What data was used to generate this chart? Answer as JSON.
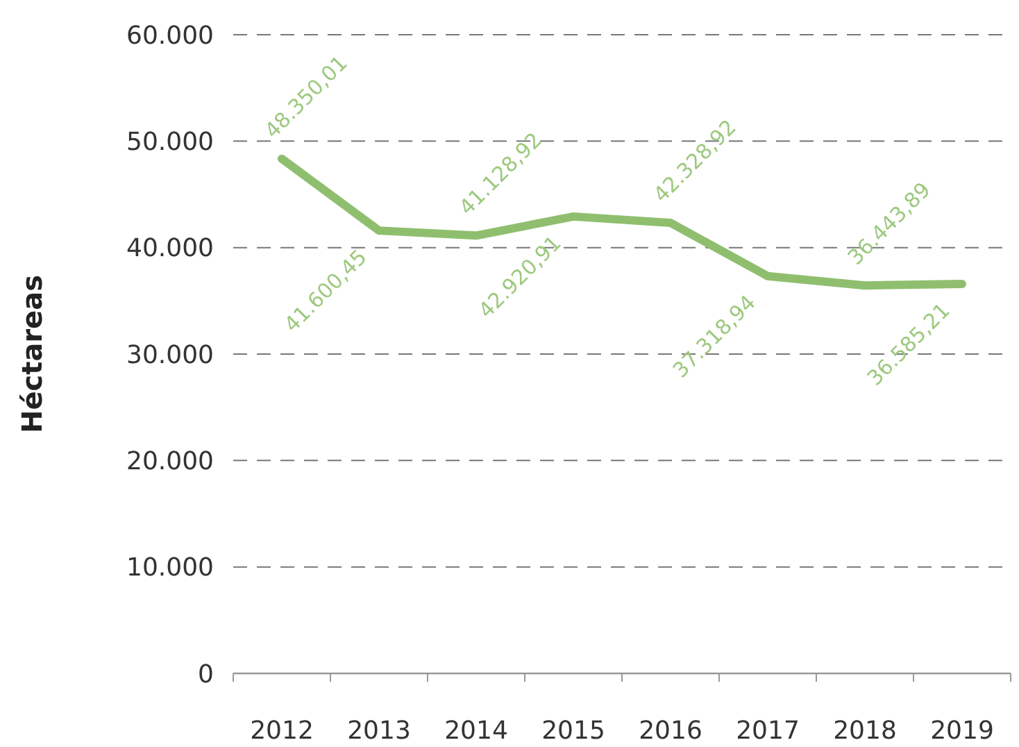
{
  "chart_data": {
    "type": "line",
    "ylabel": "Héctareas",
    "categories": [
      "2012",
      "2013",
      "2014",
      "2015",
      "2016",
      "2017",
      "2018",
      "2019"
    ],
    "series": [
      {
        "color": "#8fbf6e",
        "values": [
          48350.01,
          41600.45,
          41128.92,
          42920.91,
          42328.92,
          37318.94,
          36443.89,
          36585.21
        ],
        "value_labels": [
          "48.350,01",
          "41.600,45",
          "41.128,92",
          "42.920,91",
          "42.328,92",
          "37.318,94",
          "36.443,89",
          "36.585,21"
        ]
      }
    ],
    "ylim": [
      0,
      60000
    ],
    "yticks": [
      0,
      {
        "value": 10000,
        "label": "10.000"
      },
      {
        "value": 20000,
        "label": "20.000"
      },
      {
        "value": 30000,
        "label": "30.000"
      },
      {
        "value": 40000,
        "label": "40.000"
      },
      {
        "value": 50000,
        "label": "50.000"
      },
      {
        "value": 60000,
        "label": "60.000"
      }
    ],
    "grid": "y",
    "marker": "none",
    "line_style": "solid"
  }
}
